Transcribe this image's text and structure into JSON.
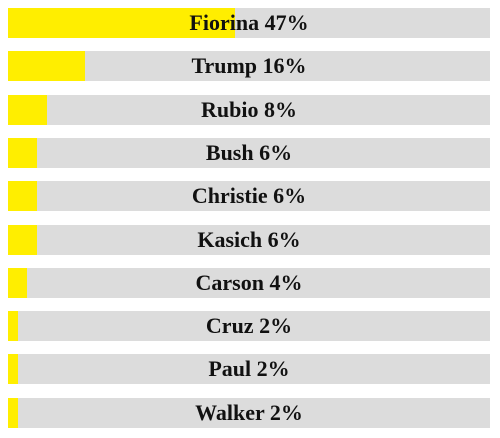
{
  "colors": {
    "bar_fill": "#ffee00",
    "track": "#dcdcdc",
    "text": "#111111"
  },
  "chart_data": {
    "type": "bar",
    "orientation": "horizontal",
    "title": "",
    "xlabel": "",
    "ylabel": "",
    "xlim": [
      0,
      100
    ],
    "grid": false,
    "categories": [
      "Fiorina",
      "Trump",
      "Rubio",
      "Bush",
      "Christie",
      "Kasich",
      "Carson",
      "Cruz",
      "Paul",
      "Walker"
    ],
    "values": [
      47,
      16,
      8,
      6,
      6,
      6,
      4,
      2,
      2,
      2
    ],
    "labels": [
      "Fiorina 47%",
      "Trump 16%",
      "Rubio 8%",
      "Bush 6%",
      "Christie 6%",
      "Kasich 6%",
      "Carson 4%",
      "Cruz 2%",
      "Paul 2%",
      "Walker 2%"
    ]
  }
}
